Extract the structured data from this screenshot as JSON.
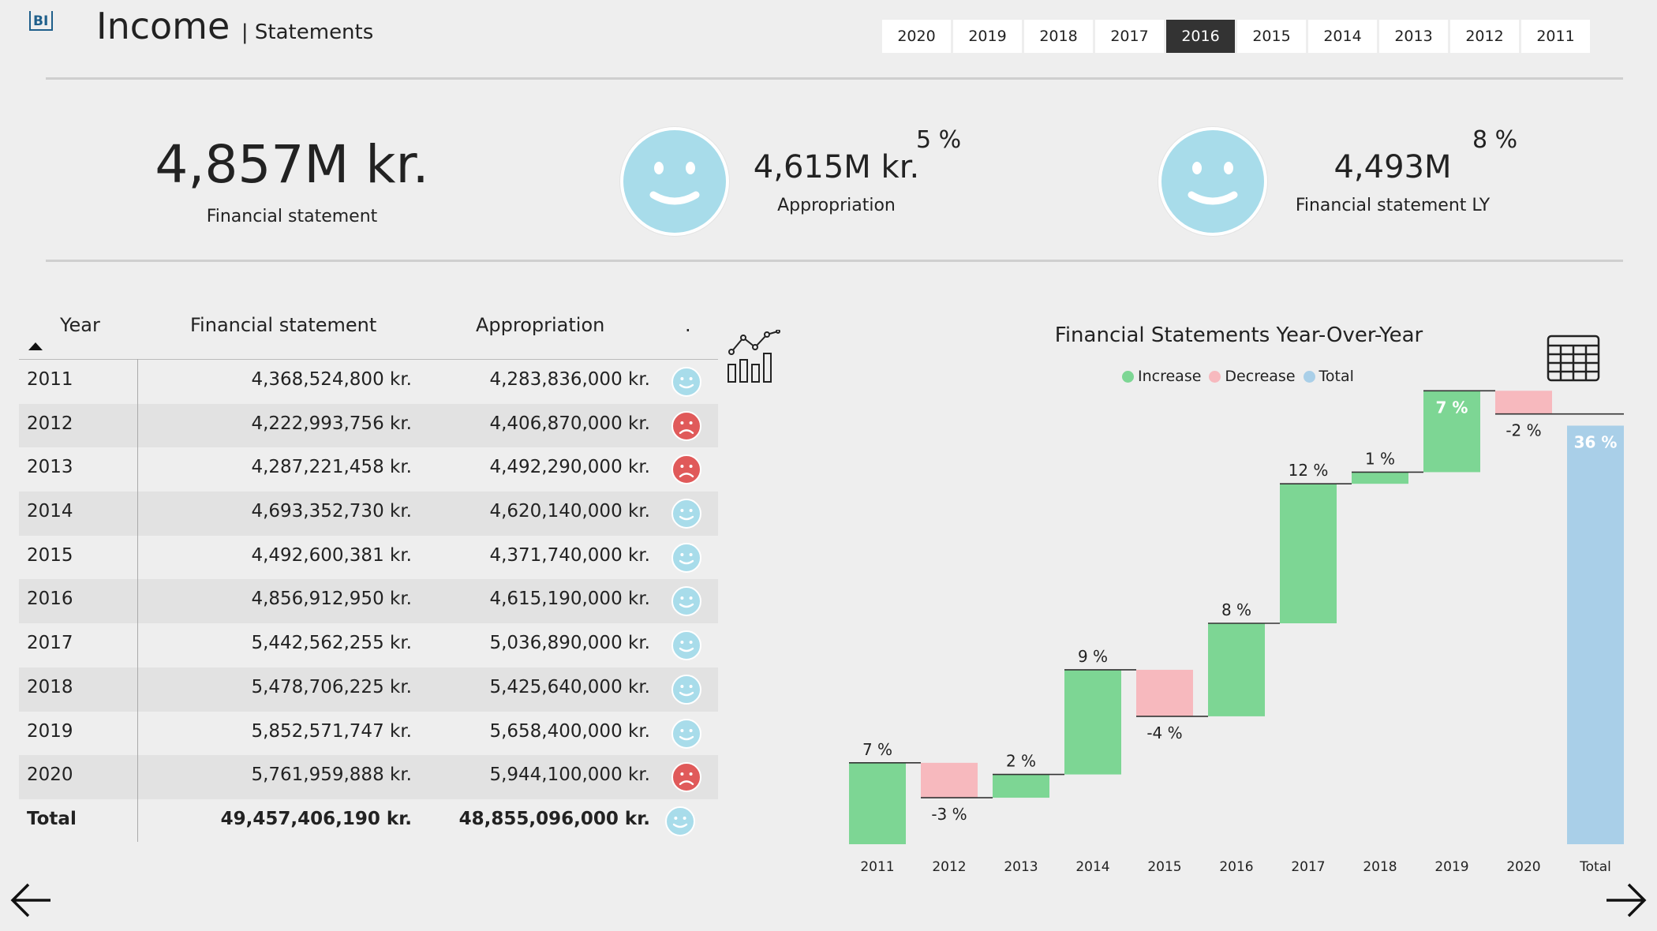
{
  "header": {
    "title": "Income",
    "subtitle": "| Statements",
    "year_tabs": [
      "2020",
      "2019",
      "2018",
      "2017",
      "2016",
      "2015",
      "2014",
      "2013",
      "2012",
      "2011"
    ],
    "active_year": "2016"
  },
  "kpis": {
    "financial_statement": {
      "value": "4,857M kr.",
      "label": "Financial statement"
    },
    "appropriation": {
      "value": "4,615M kr.",
      "label": "Appropriation",
      "pct": "5 %"
    },
    "financial_statement_ly": {
      "value": "4,493M",
      "label": "Financial statement LY",
      "pct": "8 %"
    }
  },
  "table": {
    "headers": {
      "year": "Year",
      "fs": "Financial statement",
      "ap": "Appropriation",
      "status": "."
    },
    "rows": [
      {
        "year": "2011",
        "fs": "4,368,524,800 kr.",
        "ap": "4,283,836,000 kr.",
        "status": "happy"
      },
      {
        "year": "2012",
        "fs": "4,222,993,756 kr.",
        "ap": "4,406,870,000 kr.",
        "status": "sad"
      },
      {
        "year": "2013",
        "fs": "4,287,221,458 kr.",
        "ap": "4,492,290,000 kr.",
        "status": "sad"
      },
      {
        "year": "2014",
        "fs": "4,693,352,730 kr.",
        "ap": "4,620,140,000 kr.",
        "status": "happy"
      },
      {
        "year": "2015",
        "fs": "4,492,600,381 kr.",
        "ap": "4,371,740,000 kr.",
        "status": "happy"
      },
      {
        "year": "2016",
        "fs": "4,856,912,950 kr.",
        "ap": "4,615,190,000 kr.",
        "status": "happy"
      },
      {
        "year": "2017",
        "fs": "5,442,562,255 kr.",
        "ap": "5,036,890,000 kr.",
        "status": "happy"
      },
      {
        "year": "2018",
        "fs": "5,478,706,225 kr.",
        "ap": "5,425,640,000 kr.",
        "status": "happy"
      },
      {
        "year": "2019",
        "fs": "5,852,571,747 kr.",
        "ap": "5,658,400,000 kr.",
        "status": "happy"
      },
      {
        "year": "2020",
        "fs": "5,761,959,888 kr.",
        "ap": "5,944,100,000 kr.",
        "status": "sad"
      }
    ],
    "total": {
      "year": "Total",
      "fs": "49,457,406,190 kr.",
      "ap": "48,855,096,000 kr.",
      "status": "happy"
    }
  },
  "colors": {
    "happy": "#a8dcea",
    "sad": "#e05a5a",
    "increase": "#7dd694",
    "decrease": "#f7b9be",
    "total": "#a9cfe8",
    "active_tab": "#333333"
  },
  "chart_data": {
    "type": "waterfall",
    "title": "Financial Statements Year-Over-Year",
    "legend": [
      "Increase",
      "Decrease",
      "Total"
    ],
    "legend_position": "top-center",
    "categories": [
      "2011",
      "2012",
      "2013",
      "2014",
      "2015",
      "2016",
      "2017",
      "2018",
      "2019",
      "2020",
      "Total"
    ],
    "values": [
      7,
      -3,
      2,
      9,
      -4,
      8,
      12,
      1,
      7,
      -2,
      36
    ],
    "labels": [
      "7 %",
      "-3 %",
      "2 %",
      "9 %",
      "-4 %",
      "8 %",
      "12 %",
      "1 %",
      "7 %",
      "-2 %",
      "36 %"
    ],
    "kinds": [
      "increase",
      "decrease",
      "increase",
      "increase",
      "decrease",
      "increase",
      "increase",
      "increase",
      "increase",
      "decrease",
      "total"
    ],
    "ylim": [
      0,
      38
    ]
  },
  "icons": {
    "logo": "bi-logo-icon",
    "chart": "line-bar-chart-icon",
    "table": "table-grid-icon",
    "back": "arrow-left-icon",
    "forward": "arrow-right-icon"
  }
}
